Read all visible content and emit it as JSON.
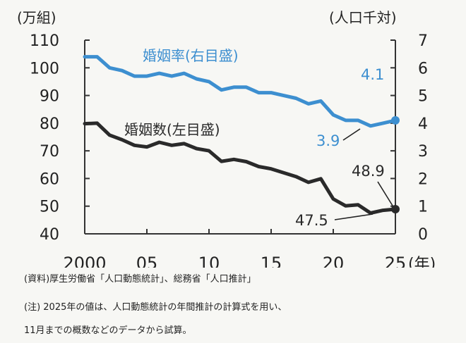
{
  "chart_data": {
    "type": "line",
    "left_axis": {
      "label": "(万組)",
      "min": 40,
      "max": 110,
      "ticks": [
        40,
        50,
        60,
        70,
        80,
        90,
        100,
        110
      ]
    },
    "right_axis": {
      "label": "(人口千対)",
      "min": 0,
      "max": 7,
      "ticks": [
        0,
        1,
        2,
        3,
        4,
        5,
        6,
        7
      ]
    },
    "x_axis": {
      "min": 2000,
      "max": 2025,
      "tick_labels": [
        {
          "value": 2000,
          "label": "2000"
        },
        {
          "value": 2005,
          "label": "05"
        },
        {
          "value": 2010,
          "label": "10"
        },
        {
          "value": 2015,
          "label": "15"
        },
        {
          "value": 2020,
          "label": "20"
        },
        {
          "value": 2025,
          "label": "25"
        }
      ],
      "unit_label": "(年)"
    },
    "series": [
      {
        "name": "婚姻率(右目盛)",
        "axis": "right",
        "color": "#3d8fd0",
        "x": [
          2000,
          2001,
          2002,
          2003,
          2004,
          2005,
          2006,
          2007,
          2008,
          2009,
          2010,
          2011,
          2012,
          2013,
          2014,
          2015,
          2016,
          2017,
          2018,
          2019,
          2020,
          2021,
          2022,
          2023,
          2024,
          2025
        ],
        "values": [
          6.4,
          6.4,
          6.0,
          5.9,
          5.7,
          5.7,
          5.8,
          5.7,
          5.8,
          5.6,
          5.5,
          5.2,
          5.3,
          5.3,
          5.1,
          5.1,
          5.0,
          4.9,
          4.7,
          4.8,
          4.3,
          4.1,
          4.1,
          3.9,
          4.0,
          4.1
        ]
      },
      {
        "name": "婚姻数(左目盛)",
        "axis": "left",
        "color": "#2a2a2a",
        "x": [
          2000,
          2001,
          2002,
          2003,
          2004,
          2005,
          2006,
          2007,
          2008,
          2009,
          2010,
          2011,
          2012,
          2013,
          2014,
          2015,
          2016,
          2017,
          2018,
          2019,
          2020,
          2021,
          2022,
          2023,
          2024,
          2025
        ],
        "values": [
          79.8,
          80.0,
          75.7,
          74.0,
          72.0,
          71.4,
          73.1,
          72.0,
          72.6,
          70.8,
          70.0,
          66.2,
          66.9,
          66.1,
          64.3,
          63.5,
          62.1,
          60.7,
          58.6,
          59.9,
          52.6,
          50.1,
          50.5,
          47.5,
          48.5,
          48.9
        ]
      }
    ],
    "annotations": [
      {
        "series": "婚姻率(右目盛)",
        "x": 2025,
        "value": 4.1,
        "label": "4.1"
      },
      {
        "series": "婚姻率(右目盛)",
        "x": 2023,
        "value": 3.9,
        "label": "3.9"
      },
      {
        "series": "婚姻数(左目盛)",
        "x": 2025,
        "value": 48.9,
        "label": "48.9"
      },
      {
        "series": "婚姻数(左目盛)",
        "x": 2023,
        "value": 47.5,
        "label": "47.5"
      }
    ]
  },
  "notes": {
    "source": "(資料)厚生労働省「人口動態統計」、総務省「人口推計」",
    "note_line1": "(注) 2025年の値は、人口動態統計の年間推計の計算式を用い、",
    "note_line2": "11月までの概数などのデータから試算。"
  }
}
